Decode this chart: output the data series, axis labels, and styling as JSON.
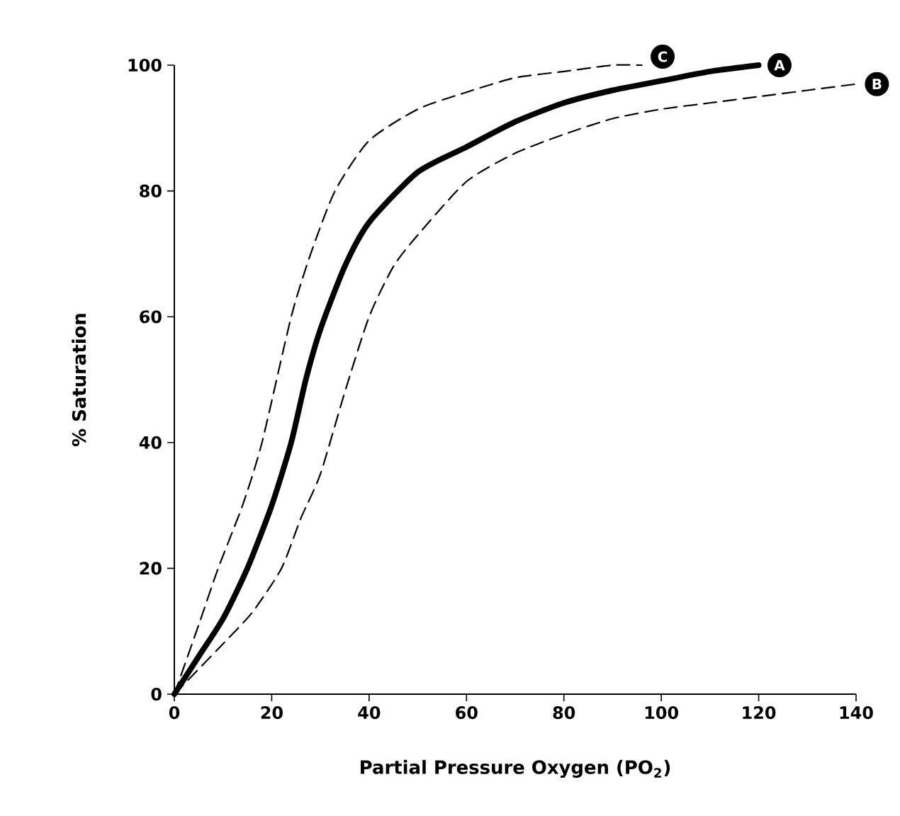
{
  "chart_data": {
    "type": "line",
    "xlabel": "Partial Pressure Oxygen (PO$_{2}$)",
    "ylabel": "% Saturation",
    "xlim": [
      0,
      140
    ],
    "ylim": [
      0,
      100
    ],
    "xticks": [
      0,
      20,
      40,
      60,
      80,
      100,
      120,
      140
    ],
    "yticks": [
      0,
      20,
      40,
      60,
      80,
      100
    ],
    "grid": false,
    "legend": false,
    "marker": "none",
    "series": [
      {
        "name": "A",
        "color": "#000000",
        "line_style": "solid",
        "x": [
          0,
          5,
          10,
          15,
          20,
          24,
          27,
          30,
          35,
          40,
          50,
          60,
          70,
          80,
          90,
          100,
          110,
          120
        ],
        "values": [
          0,
          6,
          12,
          20,
          30,
          40,
          50,
          58,
          68,
          75,
          83,
          87,
          91,
          94,
          96,
          97.5,
          99,
          100
        ]
      },
      {
        "name": "B",
        "color": "#000000",
        "line_style": "dashed",
        "x": [
          0,
          10,
          16,
          22,
          26,
          30,
          35,
          40,
          45,
          50,
          60,
          70,
          80,
          90,
          100,
          110,
          120,
          130,
          140
        ],
        "values": [
          0,
          8,
          13,
          20,
          28,
          35,
          48,
          60,
          68,
          73,
          81.5,
          86,
          89,
          91.5,
          93,
          94,
          95,
          96,
          97
        ]
      },
      {
        "name": "C",
        "color": "#000000",
        "line_style": "dashed",
        "x": [
          0,
          5,
          9,
          14,
          18,
          24,
          28,
          33,
          40,
          50,
          60,
          70,
          80,
          90,
          96
        ],
        "values": [
          0,
          11,
          20,
          30,
          40,
          60,
          70,
          80,
          88,
          93,
          95.7,
          98,
          99,
          100,
          100
        ]
      }
    ]
  }
}
